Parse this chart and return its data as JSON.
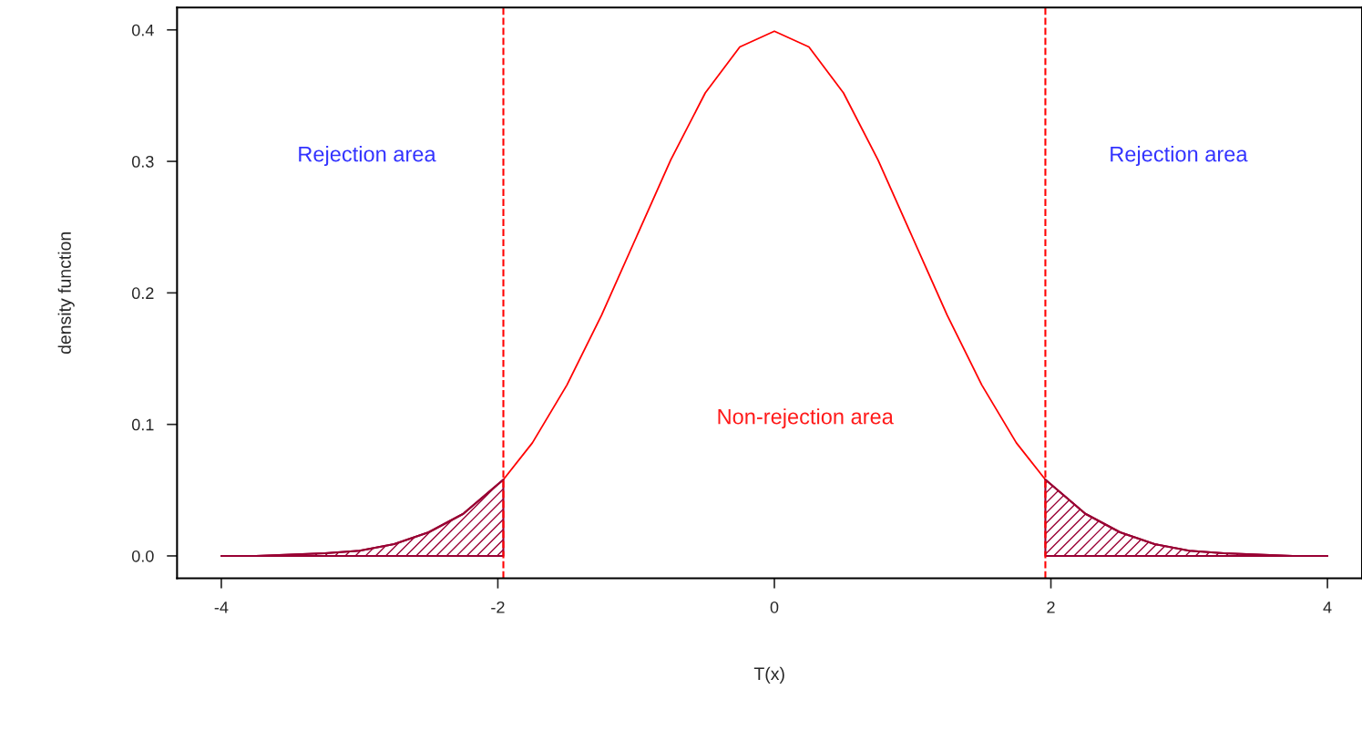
{
  "chart_data": {
    "type": "line",
    "xlabel": "T(x)",
    "ylabel": "density function",
    "xlim": [
      -4.32,
      4.25
    ],
    "ylim": [
      -0.017,
      0.417
    ],
    "xticks": [
      -4,
      -2,
      0,
      2,
      4
    ],
    "yticks": [
      {
        "value": 0,
        "label": "0.0"
      },
      0.1,
      0.2,
      0.3,
      0.4
    ],
    "grid": false,
    "marker": "none",
    "line_style": "solid",
    "series": [
      {
        "color": "#ff0000",
        "x": [
          -1.96,
          -1.75,
          -1.5,
          -1.25,
          -1,
          -0.75,
          -0.5,
          -0.25,
          0,
          0.25,
          0.5,
          0.75,
          1,
          1.25,
          1.5,
          1.75,
          1.96
        ],
        "values": [
          0.058,
          0.086,
          0.13,
          0.183,
          0.242,
          0.301,
          0.352,
          0.387,
          0.399,
          0.387,
          0.352,
          0.301,
          0.242,
          0.183,
          0.13,
          0.086,
          0.058
        ]
      },
      {
        "type": "area",
        "color": "#990033",
        "x": [
          -4,
          -3.75,
          -3.5,
          -3.25,
          -3,
          -2.75,
          -2.5,
          -2.25,
          -1.96
        ],
        "values": [
          0.0,
          0.0,
          0.001,
          0.002,
          0.004,
          0.009,
          0.018,
          0.032,
          0.058
        ]
      },
      {
        "type": "area",
        "color": "#990033",
        "x": [
          1.96,
          2.25,
          2.5,
          2.75,
          3,
          3.25,
          3.5,
          3.75,
          4
        ],
        "values": [
          0.058,
          0.032,
          0.018,
          0.009,
          0.004,
          0.002,
          0.001,
          0.0,
          0.0
        ]
      }
    ],
    "ref_lines": [
      {
        "axis": "x",
        "value": -1.96,
        "color": "#ff0000",
        "line_style": "dashed"
      },
      {
        "axis": "x",
        "value": 1.96,
        "color": "#ff0000",
        "line_style": "dashed"
      }
    ],
    "annotations": [
      "Rejection area",
      "Rejection area",
      "Non-rejection area"
    ]
  }
}
